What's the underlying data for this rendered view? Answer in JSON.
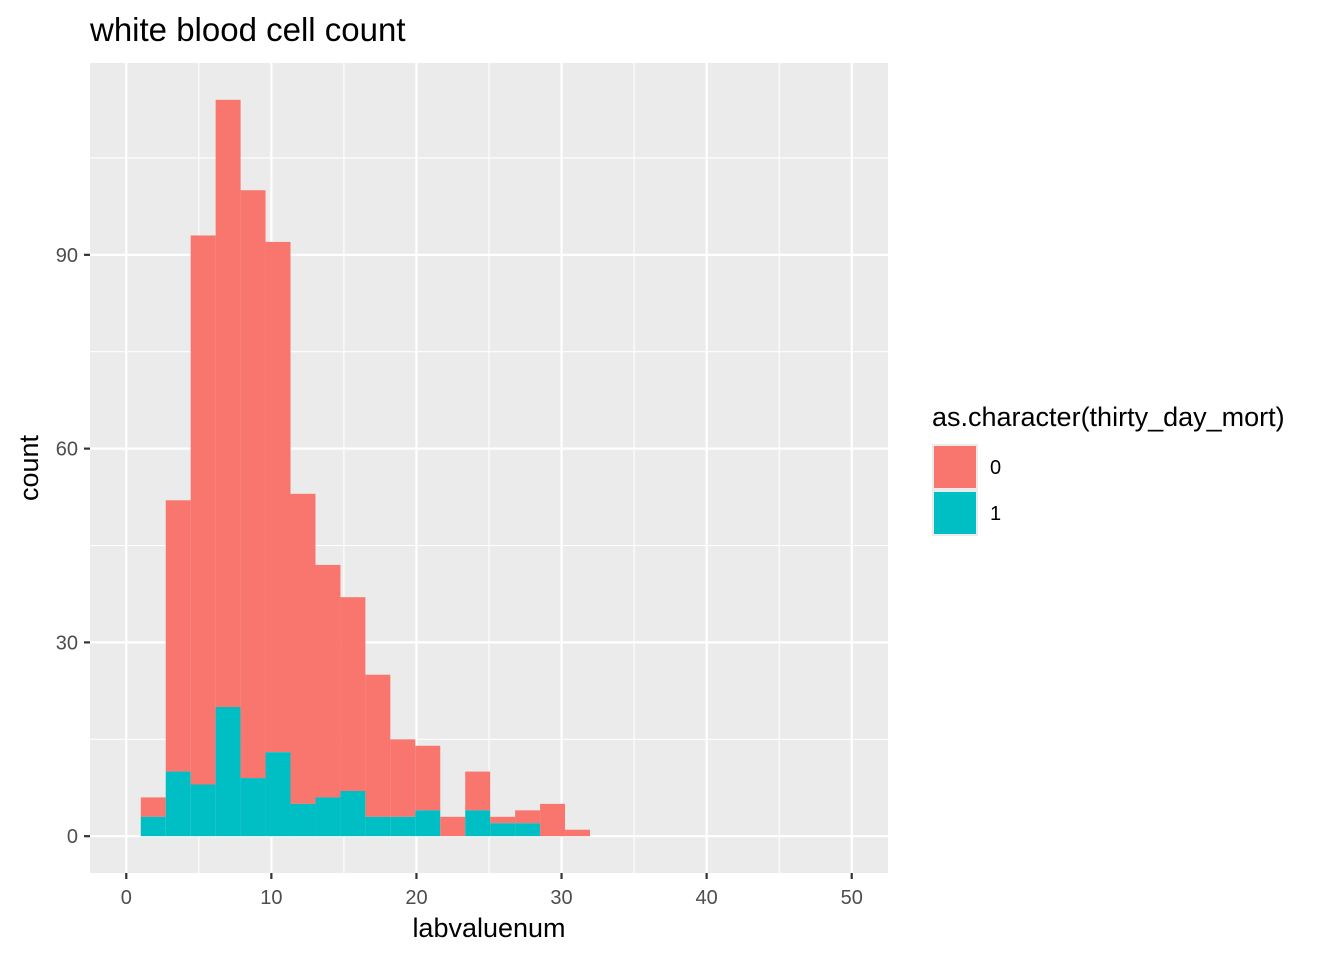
{
  "chart_data": {
    "type": "bar",
    "subtype": "stacked-histogram",
    "title": "white blood cell count",
    "xlabel": "labvaluenum",
    "ylabel": "count",
    "xlim": [
      -2.5,
      52.5
    ],
    "ylim": [
      -5.7,
      119.7
    ],
    "x_ticks": [
      0,
      10,
      20,
      30,
      40,
      50
    ],
    "y_ticks": [
      0,
      30,
      60,
      90
    ],
    "grid": true,
    "legend": {
      "title": "as.character(thirty_day_mort)",
      "position": "right"
    },
    "bin_width": 1.72,
    "bin_starts": [
      1.0,
      2.72,
      4.44,
      6.16,
      7.88,
      9.6,
      11.32,
      13.04,
      14.76,
      16.48,
      18.2,
      19.92,
      21.64,
      23.36,
      25.08,
      26.8,
      28.52,
      30.24
    ],
    "series": [
      {
        "name": "0",
        "color": "#F8766D",
        "values": [
          3,
          42,
          85,
          94,
          91,
          79,
          48,
          36,
          30,
          22,
          12,
          10,
          3,
          6,
          1,
          2,
          5,
          1
        ]
      },
      {
        "name": "1",
        "color": "#00BFC4",
        "values": [
          3,
          10,
          8,
          20,
          9,
          13,
          5,
          6,
          7,
          3,
          3,
          4,
          0,
          4,
          2,
          2,
          0,
          0
        ]
      }
    ]
  }
}
